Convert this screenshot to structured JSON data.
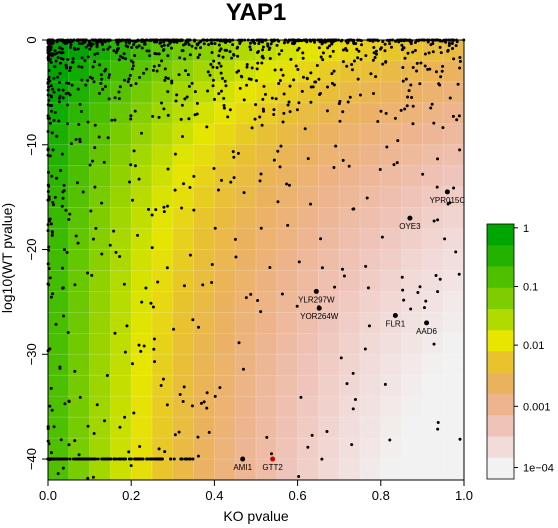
{
  "chart_data": {
    "type": "scatter",
    "title": "YAP1",
    "xlabel": "KO pvalue",
    "ylabel": "log10(WT pvalue)",
    "xlim": [
      0,
      1
    ],
    "ylim": [
      -42,
      0
    ],
    "xticks": [
      "0.0",
      "0.2",
      "0.4",
      "0.6",
      "0.8",
      "1.0"
    ],
    "xtick_values": [
      0,
      0.2,
      0.4,
      0.6,
      0.8,
      1.0
    ],
    "yticks": [
      "0",
      "−10",
      "−20",
      "−30",
      "−40"
    ],
    "ytick_values": [
      0,
      -10,
      -20,
      -30,
      -40
    ],
    "background": "heatmap of p-value density, green (1) to yellow (0.01) to salmon (0.001) to white (1e-04)",
    "legend": {
      "placement": "right",
      "labels": [
        "1",
        "0.1",
        "0.01",
        "0.001",
        "1e−04"
      ],
      "colors": [
        "#00a600",
        "#23b200",
        "#4dc000",
        "#7dcd00",
        "#b0da00",
        "#e6e600",
        "#e8c32e",
        "#ebb25e",
        "#edb48e",
        "#efc3b8",
        "#f1dcda",
        "#f2f2f2"
      ]
    },
    "labeled_points": [
      {
        "label": "YPR015C",
        "x": 0.96,
        "y": -14.5,
        "color": "#000000"
      },
      {
        "label": "OYE3",
        "x": 0.87,
        "y": -17.0,
        "color": "#000000"
      },
      {
        "label": "YLR297W",
        "x": 0.645,
        "y": -24.0,
        "color": "#000000"
      },
      {
        "label": "YOR264W",
        "x": 0.652,
        "y": -25.6,
        "color": "#000000"
      },
      {
        "label": "FLR1",
        "x": 0.835,
        "y": -26.3,
        "color": "#000000"
      },
      {
        "label": "AAD6",
        "x": 0.91,
        "y": -27.0,
        "color": "#000000"
      },
      {
        "label": "AMI1",
        "x": 0.468,
        "y": -40.0,
        "color": "#000000"
      },
      {
        "label": "GTT2",
        "x": 0.54,
        "y": -40.0,
        "color": "#cc0000"
      }
    ]
  }
}
